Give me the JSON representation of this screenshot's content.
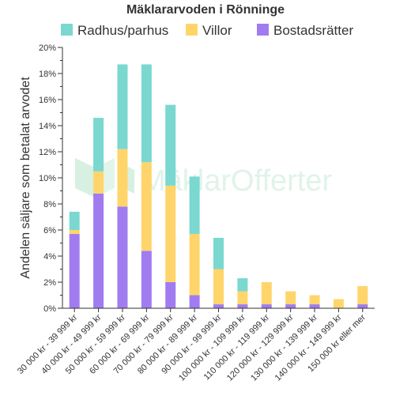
{
  "chart_data": {
    "type": "bar",
    "stacked": true,
    "title": "Mäklararvoden i Rönninge",
    "ylabel": "Andelen säljare som betalat arvodet",
    "xlabel": "",
    "ylim": [
      0,
      20
    ],
    "y_ticks": [
      "0%",
      "2%",
      "4%",
      "6%",
      "8%",
      "10%",
      "12%",
      "14%",
      "16%",
      "18%",
      "20%"
    ],
    "legend_position": "top",
    "grid": false,
    "categories": [
      "30 000 kr - 39 999 kr",
      "40 000 kr - 49 999 kr",
      "50 000 kr - 59 999 kr",
      "60 000 kr - 69 999 kr",
      "70 000 kr - 79 999 kr",
      "80 000 kr - 89 999 kr",
      "90 000 kr - 99 999 kr",
      "100 000 kr - 109 999 kr",
      "110 000 kr - 119 999 kr",
      "120 000 kr - 129 999 kr",
      "130 000 kr - 139 999 kr",
      "140 000 kr - 149 999 kr",
      "150 000 kr eller mer"
    ],
    "series": [
      {
        "name": "Bostadsrätter",
        "color": "#a07cf0",
        "values": [
          5.7,
          8.8,
          7.8,
          4.4,
          2.0,
          1.0,
          0.3,
          0.3,
          0.3,
          0.3,
          0.3,
          0.0,
          0.3
        ]
      },
      {
        "name": "Villor",
        "color": "#ffd56b",
        "values": [
          0.3,
          1.7,
          4.4,
          6.8,
          7.4,
          4.7,
          2.7,
          1.0,
          1.7,
          1.0,
          0.7,
          0.7,
          1.4
        ]
      },
      {
        "name": "Radhus/parhus",
        "color": "#7ad8d0",
        "values": [
          1.4,
          4.1,
          6.5,
          7.5,
          6.2,
          4.4,
          2.4,
          1.0,
          0.0,
          0.0,
          0.0,
          0.0,
          0.0
        ]
      }
    ],
    "legend_order": [
      "Radhus/parhus",
      "Villor",
      "Bostadsrätter"
    ]
  },
  "watermark": {
    "text": "MäklarOfferter"
  }
}
